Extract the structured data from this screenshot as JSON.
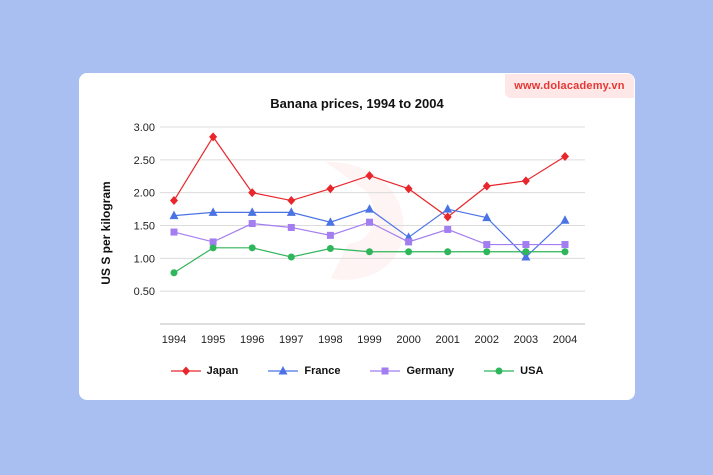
{
  "brand": {
    "url": "www.dolacademy.vn",
    "color": "#e53935"
  },
  "chart_data": {
    "type": "line",
    "title": "Banana prices, 1994 to 2004",
    "xlabel": "",
    "ylabel": "US S per kilogram",
    "categories": [
      "1994",
      "1995",
      "1996",
      "1997",
      "1998",
      "1999",
      "2000",
      "2001",
      "2002",
      "2003",
      "2004"
    ],
    "ylim": [
      0,
      3.0
    ],
    "yticks": [
      "0.50",
      "1.00",
      "1.50",
      "2.00",
      "2.50",
      "3.00"
    ],
    "grid": true,
    "legend_position": "bottom",
    "series": [
      {
        "name": "Japan",
        "color": "#e8262b",
        "marker": "diamond",
        "values": [
          1.88,
          2.85,
          2.0,
          1.88,
          2.06,
          2.26,
          2.06,
          1.63,
          2.1,
          2.18,
          2.55
        ]
      },
      {
        "name": "France",
        "color": "#4b73e6",
        "marker": "triangle",
        "values": [
          1.65,
          1.7,
          1.7,
          1.7,
          1.55,
          1.75,
          1.32,
          1.75,
          1.62,
          1.02,
          1.58
        ]
      },
      {
        "name": "Germany",
        "color": "#a37ef0",
        "marker": "square",
        "values": [
          1.4,
          1.25,
          1.53,
          1.47,
          1.35,
          1.55,
          1.25,
          1.44,
          1.21,
          1.21,
          1.21
        ]
      },
      {
        "name": "USA",
        "color": "#2fb55a",
        "marker": "circle",
        "values": [
          0.78,
          1.16,
          1.16,
          1.02,
          1.15,
          1.1,
          1.1,
          1.1,
          1.1,
          1.1,
          1.1
        ]
      }
    ]
  }
}
